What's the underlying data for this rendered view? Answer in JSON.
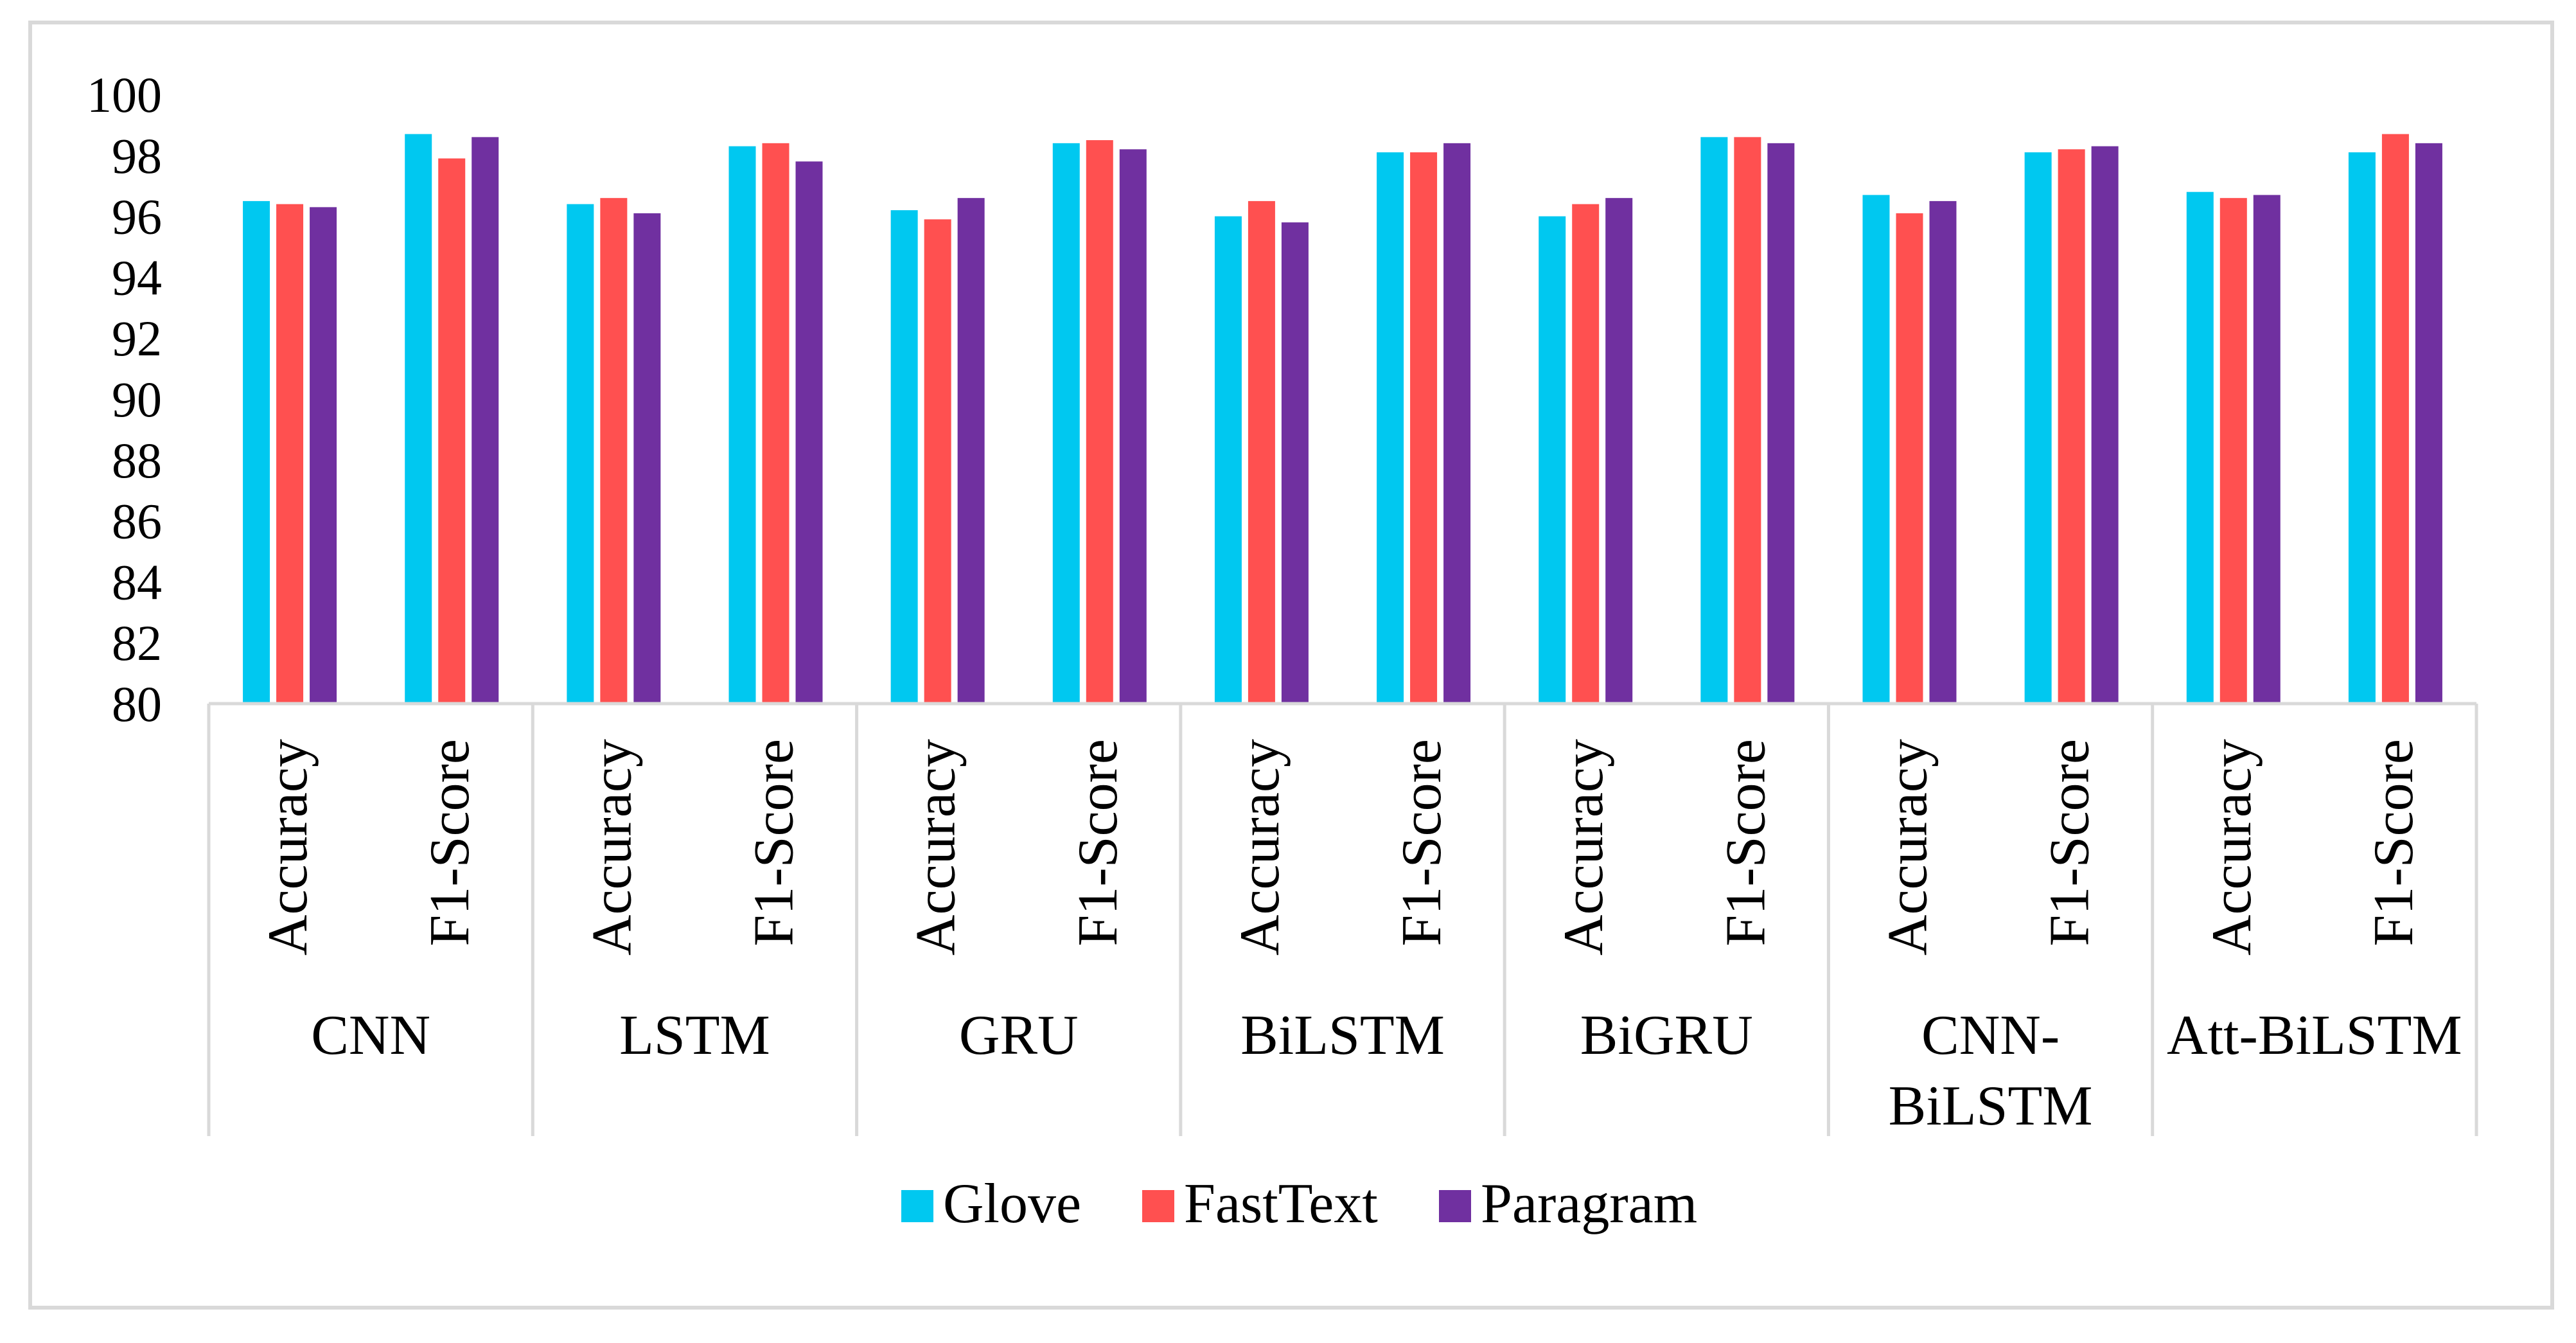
{
  "chart_data": {
    "type": "bar",
    "title": "",
    "xlabel": "",
    "ylabel": "",
    "ylim": [
      80,
      100
    ],
    "ytick_step": 2,
    "yticks": [
      "80",
      "82",
      "84",
      "86",
      "88",
      "90",
      "92",
      "94",
      "96",
      "98",
      "100"
    ],
    "grid": false,
    "legend_position": "bottom",
    "groups": [
      {
        "name": "CNN",
        "lines": [
          "CNN"
        ]
      },
      {
        "name": "LSTM",
        "lines": [
          "LSTM"
        ]
      },
      {
        "name": "GRU",
        "lines": [
          "GRU"
        ]
      },
      {
        "name": "BiLSTM",
        "lines": [
          "BiLSTM"
        ]
      },
      {
        "name": "BiGRU",
        "lines": [
          "BiGRU"
        ]
      },
      {
        "name": "CNN-BiLSTM",
        "lines": [
          "CNN-",
          "BiLSTM"
        ]
      },
      {
        "name": "Att-BiLSTM",
        "lines": [
          "Att-BiLSTM"
        ]
      }
    ],
    "metrics": [
      "Accuracy",
      "F1-Score"
    ],
    "categories": [
      "CNN Accuracy",
      "CNN F1-Score",
      "LSTM Accuracy",
      "LSTM F1-Score",
      "GRU Accuracy",
      "GRU F1-Score",
      "BiLSTM Accuracy",
      "BiLSTM F1-Score",
      "BiGRU Accuracy",
      "BiGRU F1-Score",
      "CNN-BiLSTM Accuracy",
      "CNN-BiLSTM F1-Score",
      "Att-BiLSTM Accuracy",
      "Att-BiLSTM F1-Score"
    ],
    "series": [
      {
        "name": "Glove",
        "color": "#00C8F0",
        "values": [
          96.5,
          98.7,
          96.4,
          98.3,
          96.2,
          98.4,
          96.0,
          98.1,
          96.0,
          98.6,
          96.7,
          98.1,
          96.8,
          98.1
        ]
      },
      {
        "name": "FastText",
        "color": "#FF5050",
        "values": [
          96.4,
          97.9,
          96.6,
          98.4,
          95.9,
          98.5,
          96.5,
          98.1,
          96.4,
          98.6,
          96.1,
          98.2,
          96.6,
          98.7
        ]
      },
      {
        "name": "Paragram",
        "color": "#7030A0",
        "values": [
          96.3,
          98.6,
          96.1,
          97.8,
          96.6,
          98.2,
          95.8,
          98.4,
          96.6,
          98.4,
          96.5,
          98.3,
          96.7,
          98.4
        ]
      }
    ]
  }
}
